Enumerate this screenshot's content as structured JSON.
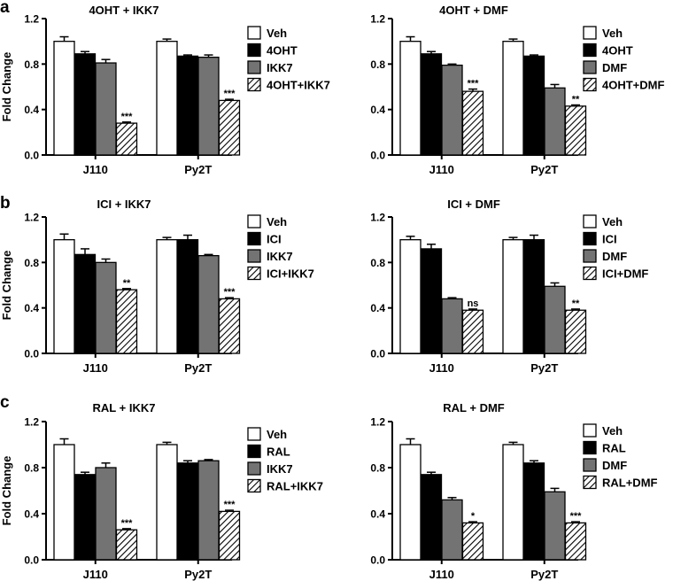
{
  "figure": {
    "y_axis_label": "Fold Change",
    "panel_letters": [
      "a",
      "b",
      "c"
    ]
  },
  "colors": {
    "veh": "#ffffff",
    "single_a": "#000000",
    "single_b": "#737373",
    "combo": "hatched",
    "axis": "#000000"
  },
  "chart_data": [
    {
      "type": "bar",
      "title": "4OHT + IKK7",
      "categories": [
        "J110",
        "Py2T"
      ],
      "ylim": [
        0,
        1.2
      ],
      "yticks": [
        "0.0",
        "0.4",
        "0.8",
        "1.2"
      ],
      "ylabel": "Fold Change",
      "series": [
        {
          "name": "Veh",
          "values": [
            1.0,
            1.0
          ],
          "errors": [
            0.04,
            0.02
          ]
        },
        {
          "name": "4OHT",
          "values": [
            0.89,
            0.87
          ],
          "errors": [
            0.02,
            0.01
          ]
        },
        {
          "name": "IKK7",
          "values": [
            0.81,
            0.86
          ],
          "errors": [
            0.03,
            0.02
          ]
        },
        {
          "name": "4OHT+IKK7",
          "values": [
            0.28,
            0.48
          ],
          "errors": [
            0.01,
            0.01
          ]
        }
      ],
      "annotations": [
        "***",
        "***"
      ]
    },
    {
      "type": "bar",
      "title": "4OHT + DMF",
      "categories": [
        "J110",
        "Py2T"
      ],
      "ylim": [
        0,
        1.2
      ],
      "yticks": [
        "0.0",
        "0.4",
        "0.8",
        "1.2"
      ],
      "ylabel": "",
      "series": [
        {
          "name": "Veh",
          "values": [
            1.0,
            1.0
          ],
          "errors": [
            0.04,
            0.02
          ]
        },
        {
          "name": "4OHT",
          "values": [
            0.89,
            0.87
          ],
          "errors": [
            0.02,
            0.01
          ]
        },
        {
          "name": "DMF",
          "values": [
            0.79,
            0.59
          ],
          "errors": [
            0.01,
            0.03
          ]
        },
        {
          "name": "4OHT+DMF",
          "values": [
            0.56,
            0.43
          ],
          "errors": [
            0.02,
            0.01
          ]
        }
      ],
      "annotations": [
        "***",
        "**"
      ]
    },
    {
      "type": "bar",
      "title": "ICI + IKK7",
      "categories": [
        "J110",
        "Py2T"
      ],
      "ylim": [
        0,
        1.2
      ],
      "yticks": [
        "0.0",
        "0.4",
        "0.8",
        "1.2"
      ],
      "ylabel": "Fold Change",
      "series": [
        {
          "name": "Veh",
          "values": [
            1.0,
            1.0
          ],
          "errors": [
            0.05,
            0.02
          ]
        },
        {
          "name": "ICI",
          "values": [
            0.87,
            1.0
          ],
          "errors": [
            0.05,
            0.04
          ]
        },
        {
          "name": "IKK7",
          "values": [
            0.8,
            0.86
          ],
          "errors": [
            0.03,
            0.01
          ]
        },
        {
          "name": "ICI+IKK7",
          "values": [
            0.56,
            0.48
          ],
          "errors": [
            0.01,
            0.01
          ]
        }
      ],
      "annotations": [
        "**",
        "***"
      ]
    },
    {
      "type": "bar",
      "title": "ICI + DMF",
      "categories": [
        "J110",
        "Py2T"
      ],
      "ylim": [
        0,
        1.2
      ],
      "yticks": [
        "0.0",
        "0.4",
        "0.8",
        "1.2"
      ],
      "ylabel": "",
      "series": [
        {
          "name": "Veh",
          "values": [
            1.0,
            1.0
          ],
          "errors": [
            0.03,
            0.02
          ]
        },
        {
          "name": "ICI",
          "values": [
            0.92,
            1.0
          ],
          "errors": [
            0.04,
            0.04
          ]
        },
        {
          "name": "DMF",
          "values": [
            0.48,
            0.59
          ],
          "errors": [
            0.01,
            0.03
          ]
        },
        {
          "name": "ICI+DMF",
          "values": [
            0.38,
            0.38
          ],
          "errors": [
            0.01,
            0.01
          ]
        }
      ],
      "annotations": [
        "ns",
        "**"
      ]
    },
    {
      "type": "bar",
      "title": "RAL + IKK7",
      "categories": [
        "J110",
        "Py2T"
      ],
      "ylim": [
        0,
        1.2
      ],
      "yticks": [
        "0.0",
        "0.4",
        "0.8",
        "1.2"
      ],
      "ylabel": "Fold Change",
      "series": [
        {
          "name": "Veh",
          "values": [
            1.0,
            1.0
          ],
          "errors": [
            0.05,
            0.02
          ]
        },
        {
          "name": "RAL",
          "values": [
            0.74,
            0.84
          ],
          "errors": [
            0.02,
            0.02
          ]
        },
        {
          "name": "IKK7",
          "values": [
            0.8,
            0.86
          ],
          "errors": [
            0.04,
            0.01
          ]
        },
        {
          "name": "RAL+IKK7",
          "values": [
            0.26,
            0.42
          ],
          "errors": [
            0.01,
            0.01
          ]
        }
      ],
      "annotations": [
        "***",
        "***"
      ]
    },
    {
      "type": "bar",
      "title": "RAL + DMF",
      "categories": [
        "J110",
        "Py2T"
      ],
      "ylim": [
        0,
        1.2
      ],
      "yticks": [
        "0.0",
        "0.4",
        "0.8",
        "1.2"
      ],
      "ylabel": "",
      "series": [
        {
          "name": "Veh",
          "values": [
            1.0,
            1.0
          ],
          "errors": [
            0.05,
            0.02
          ]
        },
        {
          "name": "RAL",
          "values": [
            0.74,
            0.84
          ],
          "errors": [
            0.02,
            0.02
          ]
        },
        {
          "name": "DMF",
          "values": [
            0.52,
            0.59
          ],
          "errors": [
            0.02,
            0.03
          ]
        },
        {
          "name": "RAL+DMF",
          "values": [
            0.32,
            0.32
          ],
          "errors": [
            0.01,
            0.01
          ]
        }
      ],
      "annotations": [
        "*",
        "***"
      ]
    }
  ]
}
